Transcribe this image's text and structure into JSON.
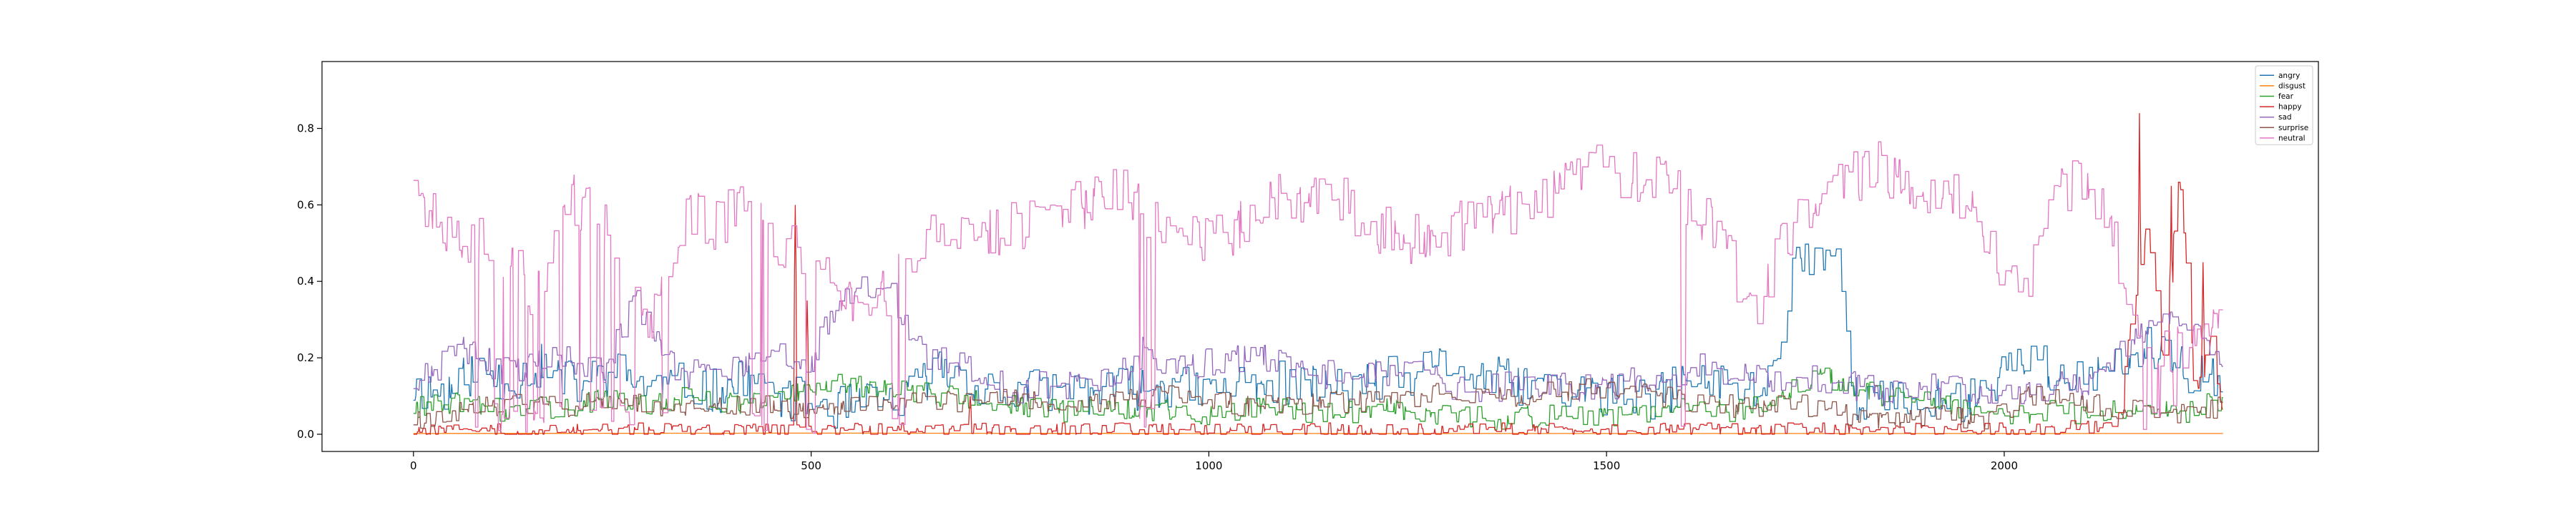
{
  "chart_data": {
    "type": "line",
    "title": "",
    "xlabel": "",
    "ylabel": "",
    "xlim": [
      -115,
      2395
    ],
    "ylim": [
      -0.045,
      0.975
    ],
    "xticks": [
      0,
      500,
      1000,
      1500,
      2000
    ],
    "xtick_labels": [
      "0",
      "500",
      "1000",
      "1500",
      "2000"
    ],
    "yticks": [
      0.0,
      0.2,
      0.4,
      0.6,
      0.8
    ],
    "ytick_labels": [
      "0.0",
      "0.2",
      "0.4",
      "0.6",
      "0.8"
    ],
    "grid": false,
    "legend_position": "upper-right",
    "n_points": 2276,
    "series": [
      {
        "name": "angry",
        "color": "#1f77b4",
        "knots": [
          [
            0,
            0.12
          ],
          [
            40,
            0.11
          ],
          [
            80,
            0.17
          ],
          [
            120,
            0.14
          ],
          [
            160,
            0.18
          ],
          [
            200,
            0.13
          ],
          [
            260,
            0.16
          ],
          [
            300,
            0.12
          ],
          [
            340,
            0.13
          ],
          [
            380,
            0.11
          ],
          [
            420,
            0.14
          ],
          [
            460,
            0.1
          ],
          [
            500,
            0.08
          ],
          [
            540,
            0.07
          ],
          [
            580,
            0.08
          ],
          [
            620,
            0.1
          ],
          [
            660,
            0.17
          ],
          [
            700,
            0.14
          ],
          [
            740,
            0.1
          ],
          [
            800,
            0.12
          ],
          [
            860,
            0.11
          ],
          [
            900,
            0.12
          ],
          [
            940,
            0.13
          ],
          [
            1000,
            0.11
          ],
          [
            1060,
            0.14
          ],
          [
            1100,
            0.13
          ],
          [
            1160,
            0.12
          ],
          [
            1200,
            0.14
          ],
          [
            1260,
            0.15
          ],
          [
            1300,
            0.19
          ],
          [
            1340,
            0.15
          ],
          [
            1400,
            0.13
          ],
          [
            1440,
            0.12
          ],
          [
            1500,
            0.1
          ],
          [
            1560,
            0.09
          ],
          [
            1600,
            0.14
          ],
          [
            1640,
            0.13
          ],
          [
            1700,
            0.11
          ],
          [
            1740,
            0.47
          ],
          [
            1790,
            0.48
          ],
          [
            1810,
            0.1
          ],
          [
            1860,
            0.08
          ],
          [
            1920,
            0.09
          ],
          [
            1960,
            0.09
          ],
          [
            2000,
            0.17
          ],
          [
            2030,
            0.22
          ],
          [
            2070,
            0.13
          ],
          [
            2120,
            0.15
          ],
          [
            2180,
            0.22
          ],
          [
            2220,
            0.17
          ],
          [
            2276,
            0.15
          ]
        ],
        "noise": 0.06,
        "seed": 11
      },
      {
        "name": "disgust",
        "color": "#ff7f0e",
        "knots": [
          [
            0,
            0.002
          ],
          [
            500,
            0.003
          ],
          [
            1000,
            0.002
          ],
          [
            1500,
            0.002
          ],
          [
            2000,
            0.002
          ],
          [
            2276,
            0.002
          ]
        ],
        "noise": 0.0,
        "seed": 12
      },
      {
        "name": "fear",
        "color": "#2ca02c",
        "knots": [
          [
            0,
            0.07
          ],
          [
            60,
            0.08
          ],
          [
            120,
            0.06
          ],
          [
            180,
            0.07
          ],
          [
            240,
            0.09
          ],
          [
            300,
            0.07
          ],
          [
            340,
            0.1
          ],
          [
            400,
            0.08
          ],
          [
            460,
            0.09
          ],
          [
            520,
            0.13
          ],
          [
            580,
            0.12
          ],
          [
            640,
            0.11
          ],
          [
            700,
            0.09
          ],
          [
            760,
            0.07
          ],
          [
            820,
            0.06
          ],
          [
            880,
            0.07
          ],
          [
            940,
            0.06
          ],
          [
            1000,
            0.05
          ],
          [
            1060,
            0.07
          ],
          [
            1120,
            0.06
          ],
          [
            1180,
            0.06
          ],
          [
            1240,
            0.07
          ],
          [
            1300,
            0.05
          ],
          [
            1360,
            0.04
          ],
          [
            1420,
            0.05
          ],
          [
            1480,
            0.04
          ],
          [
            1540,
            0.05
          ],
          [
            1600,
            0.07
          ],
          [
            1660,
            0.06
          ],
          [
            1720,
            0.09
          ],
          [
            1760,
            0.16
          ],
          [
            1820,
            0.11
          ],
          [
            1880,
            0.09
          ],
          [
            1940,
            0.07
          ],
          [
            2000,
            0.04
          ],
          [
            2060,
            0.06
          ],
          [
            2120,
            0.05
          ],
          [
            2180,
            0.08
          ],
          [
            2230,
            0.06
          ],
          [
            2276,
            0.09
          ]
        ],
        "noise": 0.03,
        "seed": 13
      },
      {
        "name": "happy",
        "color": "#d62728",
        "knots": [
          [
            0,
            0.01
          ],
          [
            400,
            0.01
          ],
          [
            800,
            0.01
          ],
          [
            1200,
            0.01
          ],
          [
            1600,
            0.01
          ],
          [
            2000,
            0.01
          ],
          [
            2140,
            0.02
          ],
          [
            2160,
            0.3
          ],
          [
            2180,
            0.55
          ],
          [
            2200,
            0.2
          ],
          [
            2220,
            0.7
          ],
          [
            2240,
            0.1
          ],
          [
            2260,
            0.25
          ],
          [
            2276,
            0.05
          ]
        ],
        "noise": 0.02,
        "seed": 14,
        "spikes": [
          [
            480,
            0.6
          ],
          [
            495,
            0.35
          ],
          [
            700,
            0.1
          ],
          [
            2170,
            0.84
          ],
          [
            2210,
            0.65
          ],
          [
            2250,
            0.45
          ]
        ]
      },
      {
        "name": "sad",
        "color": "#9467bd",
        "knots": [
          [
            0,
            0.14
          ],
          [
            60,
            0.22
          ],
          [
            120,
            0.16
          ],
          [
            180,
            0.2
          ],
          [
            240,
            0.17
          ],
          [
            280,
            0.35
          ],
          [
            300,
            0.25
          ],
          [
            340,
            0.15
          ],
          [
            400,
            0.18
          ],
          [
            460,
            0.2
          ],
          [
            500,
            0.19
          ],
          [
            540,
            0.38
          ],
          [
            600,
            0.37
          ],
          [
            640,
            0.2
          ],
          [
            700,
            0.18
          ],
          [
            760,
            0.12
          ],
          [
            820,
            0.13
          ],
          [
            880,
            0.14
          ],
          [
            920,
            0.22
          ],
          [
            960,
            0.17
          ],
          [
            1000,
            0.19
          ],
          [
            1060,
            0.2
          ],
          [
            1120,
            0.16
          ],
          [
            1180,
            0.15
          ],
          [
            1240,
            0.17
          ],
          [
            1300,
            0.13
          ],
          [
            1360,
            0.12
          ],
          [
            1400,
            0.13
          ],
          [
            1460,
            0.12
          ],
          [
            1520,
            0.13
          ],
          [
            1580,
            0.16
          ],
          [
            1620,
            0.18
          ],
          [
            1680,
            0.14
          ],
          [
            1740,
            0.15
          ],
          [
            1800,
            0.13
          ],
          [
            1860,
            0.11
          ],
          [
            1920,
            0.12
          ],
          [
            1980,
            0.11
          ],
          [
            2040,
            0.12
          ],
          [
            2100,
            0.13
          ],
          [
            2160,
            0.25
          ],
          [
            2220,
            0.3
          ],
          [
            2276,
            0.2
          ]
        ],
        "noise": 0.04,
        "seed": 15
      },
      {
        "name": "surprise",
        "color": "#8c564b",
        "knots": [
          [
            0,
            0.04
          ],
          [
            60,
            0.06
          ],
          [
            120,
            0.08
          ],
          [
            180,
            0.07
          ],
          [
            240,
            0.09
          ],
          [
            300,
            0.08
          ],
          [
            360,
            0.07
          ],
          [
            420,
            0.08
          ],
          [
            480,
            0.07
          ],
          [
            540,
            0.08
          ],
          [
            600,
            0.09
          ],
          [
            660,
            0.08
          ],
          [
            720,
            0.1
          ],
          [
            780,
            0.09
          ],
          [
            840,
            0.08
          ],
          [
            900,
            0.09
          ],
          [
            960,
            0.1
          ],
          [
            1020,
            0.08
          ],
          [
            1080,
            0.07
          ],
          [
            1140,
            0.08
          ],
          [
            1200,
            0.09
          ],
          [
            1260,
            0.1
          ],
          [
            1320,
            0.11
          ],
          [
            1380,
            0.1
          ],
          [
            1440,
            0.11
          ],
          [
            1500,
            0.12
          ],
          [
            1560,
            0.1
          ],
          [
            1620,
            0.08
          ],
          [
            1680,
            0.07
          ],
          [
            1740,
            0.08
          ],
          [
            1800,
            0.05
          ],
          [
            1860,
            0.03
          ],
          [
            1920,
            0.05
          ],
          [
            1980,
            0.04
          ],
          [
            2040,
            0.11
          ],
          [
            2100,
            0.08
          ],
          [
            2160,
            0.06
          ],
          [
            2220,
            0.05
          ],
          [
            2276,
            0.07
          ]
        ],
        "noise": 0.03,
        "seed": 16
      },
      {
        "name": "neutral",
        "color": "#e377c2",
        "knots": [
          [
            0,
            0.7
          ],
          [
            10,
            0.6
          ],
          [
            40,
            0.55
          ],
          [
            80,
            0.5
          ],
          [
            120,
            0.45
          ],
          [
            160,
            0.35
          ],
          [
            200,
            0.62
          ],
          [
            240,
            0.55
          ],
          [
            260,
            0.33
          ],
          [
            300,
            0.3
          ],
          [
            340,
            0.58
          ],
          [
            380,
            0.55
          ],
          [
            420,
            0.6
          ],
          [
            460,
            0.5
          ],
          [
            500,
            0.45
          ],
          [
            540,
            0.35
          ],
          [
            600,
            0.38
          ],
          [
            640,
            0.5
          ],
          [
            680,
            0.55
          ],
          [
            720,
            0.52
          ],
          [
            760,
            0.55
          ],
          [
            800,
            0.57
          ],
          [
            840,
            0.6
          ],
          [
            880,
            0.65
          ],
          [
            920,
            0.58
          ],
          [
            960,
            0.55
          ],
          [
            1000,
            0.5
          ],
          [
            1040,
            0.55
          ],
          [
            1080,
            0.62
          ],
          [
            1120,
            0.6
          ],
          [
            1160,
            0.63
          ],
          [
            1200,
            0.55
          ],
          [
            1240,
            0.52
          ],
          [
            1280,
            0.5
          ],
          [
            1320,
            0.55
          ],
          [
            1360,
            0.58
          ],
          [
            1400,
            0.6
          ],
          [
            1440,
            0.65
          ],
          [
            1480,
            0.7
          ],
          [
            1520,
            0.67
          ],
          [
            1560,
            0.68
          ],
          [
            1600,
            0.6
          ],
          [
            1640,
            0.55
          ],
          [
            1680,
            0.3
          ],
          [
            1720,
            0.5
          ],
          [
            1760,
            0.6
          ],
          [
            1800,
            0.66
          ],
          [
            1840,
            0.7
          ],
          [
            1880,
            0.65
          ],
          [
            1920,
            0.62
          ],
          [
            1960,
            0.61
          ],
          [
            2000,
            0.43
          ],
          [
            2040,
            0.43
          ],
          [
            2060,
            0.65
          ],
          [
            2100,
            0.65
          ],
          [
            2130,
            0.6
          ],
          [
            2160,
            0.3
          ],
          [
            2200,
            0.2
          ],
          [
            2240,
            0.25
          ],
          [
            2276,
            0.3
          ]
        ],
        "noise": 0.07,
        "seed": 17,
        "dips": [
          [
            30,
            300
          ],
          [
            60,
            190
          ],
          [
            90,
            330
          ],
          [
            150,
            180
          ],
          [
            170,
            270
          ],
          [
            300,
            340
          ],
          [
            400,
            510
          ],
          [
            600,
            640
          ],
          [
            900,
            930
          ],
          [
            1580,
            1600
          ],
          [
            1670,
            1700
          ],
          [
            1800,
            1820
          ],
          [
            2130,
            2276
          ]
        ]
      }
    ]
  }
}
